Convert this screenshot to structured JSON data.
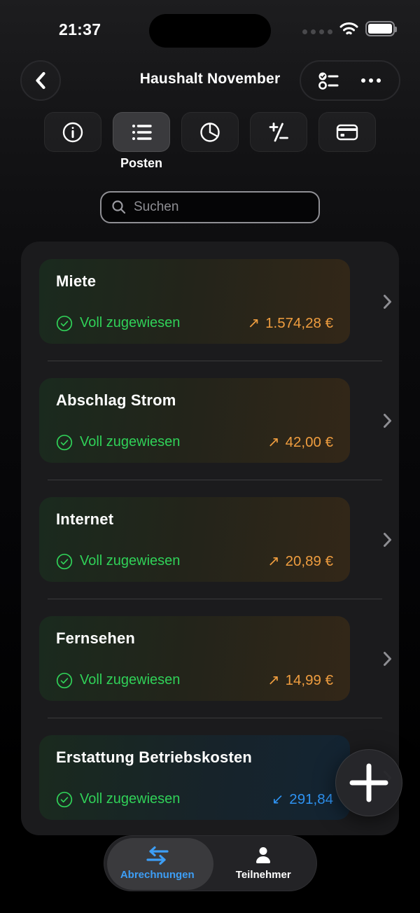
{
  "colors": {
    "green": "#30d158",
    "orange": "#ef9d3f",
    "blue": "#2e93f2",
    "accent_blue": "#3d9ef6"
  },
  "status_bar": {
    "time": "21:37",
    "icons": {
      "cellular": "cellular-dots-icon",
      "wifi": "wifi-icon",
      "battery": "battery-full-icon"
    }
  },
  "header": {
    "title": "Haushalt November",
    "back_icon": "chevron-left-icon",
    "actions": {
      "checklist_icon": "checklist-icon",
      "more_icon": "ellipsis-icon"
    }
  },
  "section_tabs": {
    "active_id": "posten",
    "active_label": "Posten",
    "tabs": [
      {
        "id": "info",
        "icon": "info-circle-icon"
      },
      {
        "id": "posten",
        "icon": "list-bullet-icon"
      },
      {
        "id": "statistik",
        "icon": "pie-chart-icon"
      },
      {
        "id": "saldo",
        "icon": "plus-minus-icon"
      },
      {
        "id": "zahlungen",
        "icon": "credit-card-icon"
      }
    ]
  },
  "search": {
    "placeholder": "Suchen",
    "icon": "search-icon"
  },
  "posten_list": {
    "status_icon": "check-circle-icon",
    "arrows": {
      "out": "↗",
      "in": "↙"
    },
    "items": [
      {
        "title": "Miete",
        "status": "Voll zugewiesen",
        "amount": "1.574,28 €",
        "direction": "out"
      },
      {
        "title": "Abschlag Strom",
        "status": "Voll zugewiesen",
        "amount": "42,00 €",
        "direction": "out"
      },
      {
        "title": "Internet",
        "status": "Voll zugewiesen",
        "amount": "20,89 €",
        "direction": "out"
      },
      {
        "title": "Fernsehen",
        "status": "Voll zugewiesen",
        "amount": "14,99 €",
        "direction": "out"
      },
      {
        "title": "Erstattung Betriebskosten",
        "status": "Voll zugewiesen",
        "amount": "291,84",
        "direction": "in"
      }
    ]
  },
  "fab": {
    "icon": "plus-icon"
  },
  "bottom_nav": {
    "items": [
      {
        "id": "abrechnungen",
        "label": "Abrechnungen",
        "icon": "swap-arrows-icon",
        "active": true
      },
      {
        "id": "teilnehmer",
        "label": "Teilnehmer",
        "icon": "person-icon",
        "active": false
      }
    ]
  }
}
